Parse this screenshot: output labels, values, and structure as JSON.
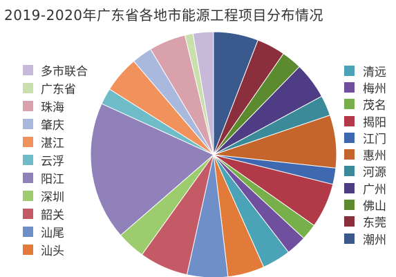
{
  "chart_data": {
    "type": "pie",
    "title": "2019-2020年广东省各地市能源工程项目分布情况",
    "slices": [
      {
        "label": "潮州",
        "value": 5.5,
        "color": "#3a5a8e"
      },
      {
        "label": "东莞",
        "value": 3.5,
        "color": "#8c2f3d"
      },
      {
        "label": "佛山",
        "value": 2.5,
        "color": "#5c8a2f"
      },
      {
        "label": "广州",
        "value": 4.5,
        "color": "#4e3d84"
      },
      {
        "label": "河源",
        "value": 2.5,
        "color": "#3a8a9a"
      },
      {
        "label": "惠州",
        "value": 6.5,
        "color": "#c4652b"
      },
      {
        "label": "江门",
        "value": 2.0,
        "color": "#3e68b0"
      },
      {
        "label": "揭阳",
        "value": 5.5,
        "color": "#b23a48"
      },
      {
        "label": "茂名",
        "value": 2.0,
        "color": "#77b04b"
      },
      {
        "label": "梅州",
        "value": 2.5,
        "color": "#6f4f9e"
      },
      {
        "label": "清远",
        "value": 3.5,
        "color": "#4aa3b6"
      },
      {
        "label": "汕头",
        "value": 4.5,
        "color": "#e27a3a"
      },
      {
        "label": "汕尾",
        "value": 5.0,
        "color": "#6f8fc9"
      },
      {
        "label": "韶关",
        "value": 6.0,
        "color": "#c45a66"
      },
      {
        "label": "深圳",
        "value": 3.5,
        "color": "#9ccc6d"
      },
      {
        "label": "阳江",
        "value": 17.0,
        "color": "#9081bb"
      },
      {
        "label": "云浮",
        "value": 2.0,
        "color": "#6fbcc9"
      },
      {
        "label": "湛江",
        "value": 4.5,
        "color": "#f1915c"
      },
      {
        "label": "肇庆",
        "value": 2.5,
        "color": "#a9b9de"
      },
      {
        "label": "珠海",
        "value": 4.5,
        "color": "#d9a1ab"
      },
      {
        "label": "广东省",
        "value": 1.0,
        "color": "#c9e0ad"
      },
      {
        "label": "多市联合",
        "value": 2.5,
        "color": "#c7b9d9"
      }
    ],
    "legend_left": [
      "多市联合",
      "广东省",
      "珠海",
      "肇庆",
      "湛江",
      "云浮",
      "阳江",
      "深圳",
      "韶关",
      "汕尾",
      "汕头"
    ],
    "legend_right": [
      "清远",
      "梅州",
      "茂名",
      "揭阳",
      "江门",
      "惠州",
      "河源",
      "广州",
      "佛山",
      "东莞",
      "潮州"
    ]
  }
}
